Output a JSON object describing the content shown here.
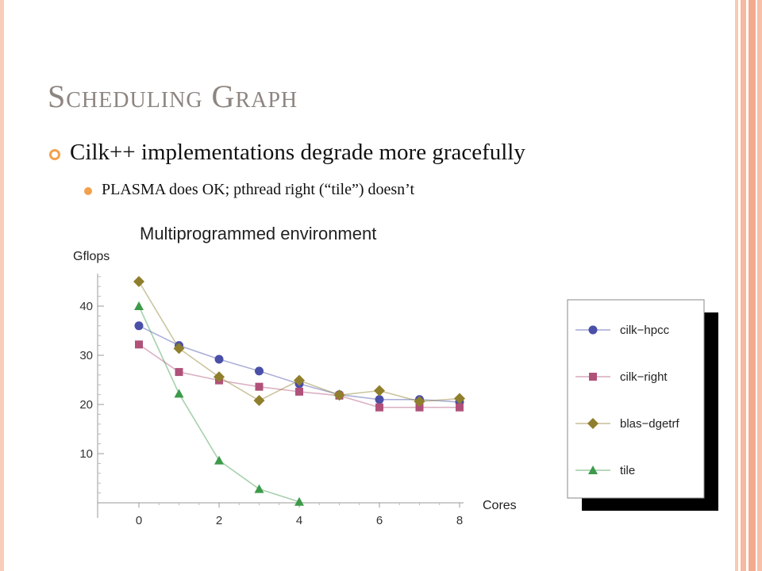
{
  "slide": {
    "title": "Scheduling Graph",
    "bullet_main": "Cilk++ implementations degrade more gracefully",
    "bullet_sub": "PLASMA does OK; pthread right (“tile”) doesn’t"
  },
  "colors": {
    "title": "#8d8580",
    "bullet": "#f2a14c",
    "border": "#f8cdb9"
  },
  "chart_data": {
    "type": "line",
    "title": "Multiprogrammed environment",
    "ylabel": "Gflops",
    "xlabel": "Cores",
    "xlim": [
      -1,
      8
    ],
    "ylim": [
      0,
      48
    ],
    "xticks": [
      0,
      2,
      4,
      6,
      8
    ],
    "yticks": [
      10,
      20,
      30,
      40
    ],
    "grid": false,
    "legend_position": "right",
    "series": [
      {
        "name": "cilk−hpcc",
        "color": "#4a4fa8",
        "marker": "circle",
        "x": [
          0,
          1,
          2,
          3,
          4,
          5,
          6,
          7,
          8
        ],
        "values": [
          36,
          32,
          29.2,
          26.8,
          24.2,
          22,
          21,
          21,
          20.5
        ]
      },
      {
        "name": "cilk−right",
        "color": "#b0517a",
        "marker": "square",
        "x": [
          0,
          1,
          2,
          3,
          4,
          5,
          6,
          7,
          8
        ],
        "values": [
          32.2,
          26.6,
          24.9,
          23.6,
          22.6,
          21.8,
          19.4,
          19.4,
          19.4
        ]
      },
      {
        "name": "blas−dgetrf",
        "color": "#8f7f2c",
        "marker": "diamond",
        "x": [
          0,
          1,
          2,
          3,
          4,
          5,
          6,
          7,
          8
        ],
        "values": [
          45,
          31.4,
          25.6,
          20.8,
          24.9,
          21.9,
          22.8,
          20.6,
          21.2
        ]
      },
      {
        "name": "tile",
        "color": "#3c9a4a",
        "marker": "triangle",
        "x": [
          0,
          1,
          2,
          3,
          4
        ],
        "values": [
          40,
          22.2,
          8.6,
          2.8,
          0.2
        ]
      }
    ]
  }
}
